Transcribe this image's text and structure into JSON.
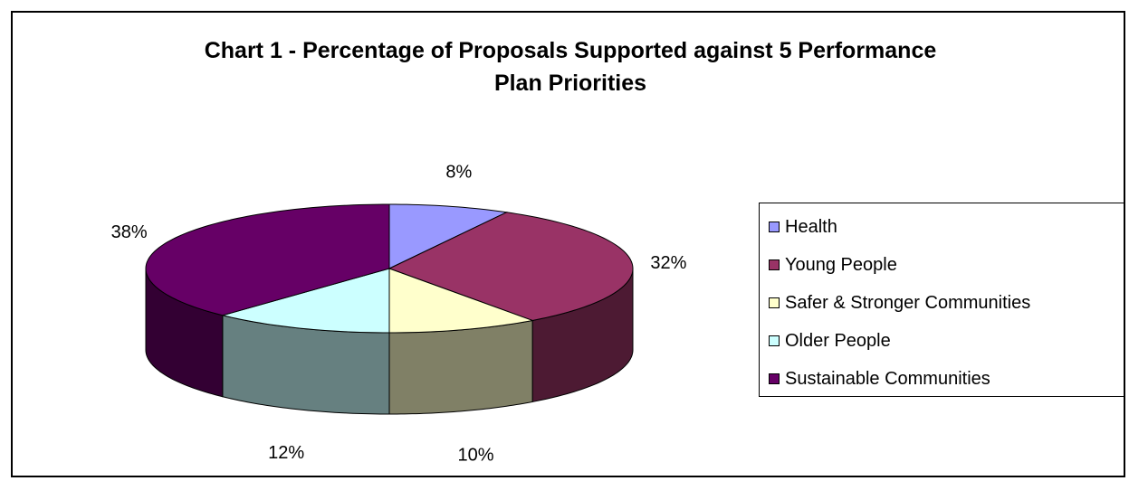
{
  "chart_data": {
    "type": "pie",
    "title_line1": "Chart 1 - Percentage of Proposals Supported against 5  Performance",
    "title_line2": "Plan Priorities",
    "slices": [
      {
        "name": "Health",
        "value": 8,
        "label": "8%",
        "color": "#9999ff"
      },
      {
        "name": "Young People",
        "value": 32,
        "label": "32%",
        "color": "#993366"
      },
      {
        "name": "Safer & Stronger Communities",
        "value": 10,
        "label": "10%",
        "color": "#ffffcc"
      },
      {
        "name": "Older People",
        "value": 12,
        "label": "12%",
        "color": "#ccffff"
      },
      {
        "name": "Sustainable Communities",
        "value": 38,
        "label": "38%",
        "color": "#660066"
      }
    ],
    "legend_position": "right",
    "style": "3d-pie"
  }
}
